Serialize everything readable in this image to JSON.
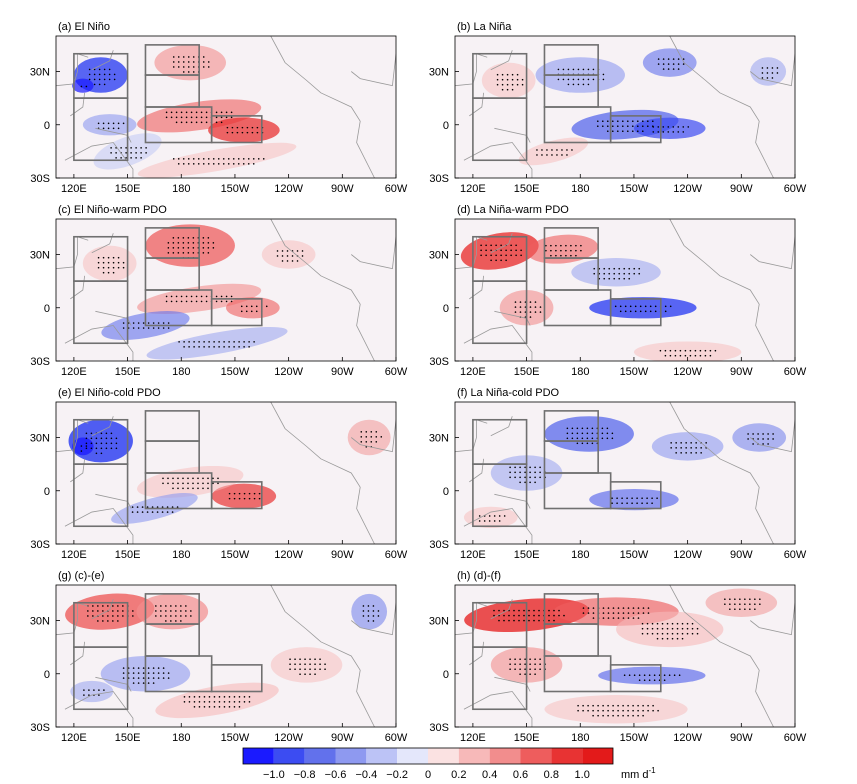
{
  "figure": {
    "panels": [
      {
        "label": "(a) El Niño"
      },
      {
        "label": "(b) La Niña"
      },
      {
        "label": "(c) El Niño-warm PDO"
      },
      {
        "label": "(d) La Niña-warm PDO"
      },
      {
        "label": "(e) El Niño-cold PDO"
      },
      {
        "label": "(f) La Niña-cold PDO"
      },
      {
        "label": "(g) (c)-(e)"
      },
      {
        "label": "(h) (d)-(f)"
      }
    ],
    "lat_ticks": [
      "30N",
      "0",
      "30S"
    ],
    "lon_ticks": [
      "120E",
      "150E",
      "180",
      "150W",
      "120W",
      "90W",
      "60W"
    ],
    "colorbar": {
      "ticks": [
        "−1.0",
        "−0.8",
        "−0.6",
        "−0.4",
        "−0.2",
        "0",
        "0.2",
        "0.4",
        "0.6",
        "0.8",
        "1.0"
      ],
      "unit": "mm d",
      "unit_exponent": "-1",
      "colors": [
        "#1a1aff",
        "#3c4cf2",
        "#6271ec",
        "#8e99f0",
        "#bcc3f6",
        "#e4e7fb",
        "#fbe2e2",
        "#f7b9b9",
        "#f28d8d",
        "#ee5d5d",
        "#e83333",
        "#e31a1a"
      ]
    }
  }
}
